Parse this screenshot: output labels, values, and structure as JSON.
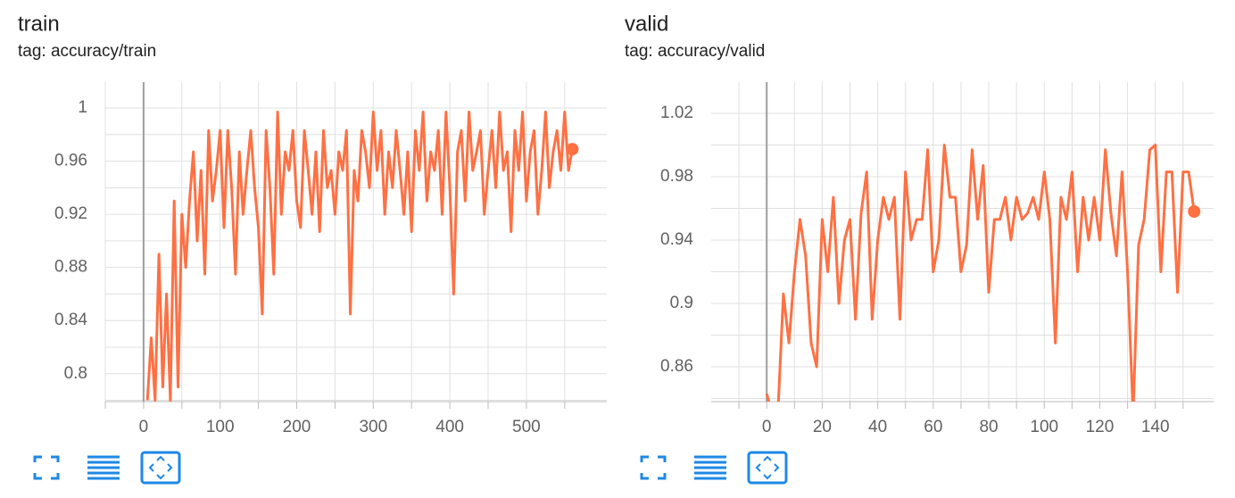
{
  "chart_data": [
    {
      "type": "line",
      "title": "train",
      "subtitle": "tag: accuracy/train",
      "color": "#ff7043",
      "x": [
        5,
        10,
        15,
        20,
        25,
        30,
        35,
        40,
        45,
        50,
        55,
        60,
        65,
        70,
        75,
        80,
        85,
        90,
        95,
        100,
        105,
        110,
        115,
        120,
        125,
        130,
        135,
        140,
        145,
        150,
        155,
        160,
        165,
        170,
        175,
        180,
        185,
        190,
        195,
        200,
        205,
        210,
        215,
        220,
        225,
        230,
        235,
        240,
        245,
        250,
        255,
        260,
        265,
        270,
        275,
        280,
        285,
        290,
        295,
        300,
        305,
        310,
        315,
        320,
        325,
        330,
        335,
        340,
        345,
        350,
        355,
        360,
        365,
        370,
        375,
        380,
        385,
        390,
        395,
        400,
        405,
        410,
        415,
        420,
        425,
        430,
        435,
        440,
        445,
        450,
        455,
        460,
        465,
        470,
        475,
        480,
        485,
        490,
        495,
        500,
        505,
        510,
        515,
        520,
        525,
        530,
        535,
        540,
        545,
        550,
        555,
        560
      ],
      "values": [
        0.78,
        0.827,
        0.78,
        0.89,
        0.79,
        0.86,
        0.78,
        0.93,
        0.79,
        0.92,
        0.88,
        0.93,
        0.967,
        0.9,
        0.953,
        0.875,
        0.983,
        0.93,
        0.953,
        0.983,
        0.91,
        0.983,
        0.94,
        0.875,
        0.967,
        0.92,
        0.953,
        0.983,
        0.94,
        0.91,
        0.845,
        0.983,
        0.94,
        0.875,
        0.997,
        0.92,
        0.967,
        0.953,
        0.983,
        0.93,
        0.91,
        0.983,
        0.953,
        0.92,
        0.967,
        0.907,
        0.983,
        0.94,
        0.953,
        0.92,
        0.967,
        0.953,
        0.983,
        0.845,
        0.953,
        0.93,
        0.983,
        0.967,
        0.94,
        0.997,
        0.953,
        0.983,
        0.92,
        0.967,
        0.94,
        0.983,
        0.953,
        0.92,
        0.967,
        0.907,
        0.983,
        0.953,
        0.997,
        0.93,
        0.967,
        0.953,
        0.983,
        0.92,
        0.997,
        0.94,
        0.86,
        0.967,
        0.983,
        0.93,
        0.997,
        0.953,
        0.967,
        0.983,
        0.92,
        0.953,
        0.983,
        0.94,
        0.997,
        0.953,
        0.967,
        0.907,
        0.983,
        0.953,
        0.997,
        0.93,
        0.967,
        0.983,
        0.92,
        0.953,
        0.997,
        0.94,
        0.967,
        0.983,
        0.953,
        0.997,
        0.953,
        0.969
      ],
      "xlim": [
        -50,
        605
      ],
      "xticks": [
        0,
        100,
        200,
        300,
        400,
        500
      ],
      "ylim": [
        0.779,
        1.0195
      ],
      "yticks": [
        0.8,
        0.84,
        0.88,
        0.92,
        0.96,
        1
      ],
      "grid": true,
      "minor_grid": true,
      "last_point_marker": true
    },
    {
      "type": "line",
      "title": "valid",
      "subtitle": "tag: accuracy/valid",
      "color": "#ff7043",
      "x": [
        0,
        2,
        4,
        6,
        8,
        10,
        12,
        14,
        16,
        18,
        20,
        22,
        24,
        26,
        28,
        30,
        32,
        34,
        36,
        38,
        40,
        42,
        44,
        46,
        48,
        50,
        52,
        54,
        56,
        58,
        60,
        62,
        64,
        66,
        68,
        70,
        72,
        74,
        76,
        78,
        80,
        82,
        84,
        86,
        88,
        90,
        92,
        94,
        96,
        98,
        100,
        102,
        104,
        106,
        108,
        110,
        112,
        114,
        116,
        118,
        120,
        122,
        124,
        126,
        128,
        130,
        132,
        134,
        136,
        138,
        140,
        142,
        144,
        146,
        148,
        150,
        152,
        154
      ],
      "values": [
        0.843,
        0.83,
        0.83,
        0.906,
        0.875,
        0.92,
        0.953,
        0.93,
        0.875,
        0.86,
        0.953,
        0.92,
        0.967,
        0.9,
        0.94,
        0.953,
        0.89,
        0.957,
        0.983,
        0.89,
        0.94,
        0.967,
        0.953,
        0.967,
        0.89,
        0.983,
        0.94,
        0.953,
        0.953,
        0.997,
        0.92,
        0.94,
        1.0,
        0.967,
        0.967,
        0.92,
        0.937,
        0.997,
        0.953,
        0.987,
        0.907,
        0.953,
        0.953,
        0.967,
        0.94,
        0.967,
        0.953,
        0.957,
        0.967,
        0.953,
        0.983,
        0.953,
        0.875,
        0.967,
        0.953,
        0.983,
        0.92,
        0.967,
        0.94,
        0.967,
        0.94,
        0.997,
        0.957,
        0.93,
        0.983,
        0.92,
        0.83,
        0.937,
        0.953,
        0.997,
        1.0,
        0.92,
        0.983,
        0.983,
        0.907,
        0.983,
        0.983,
        0.958
      ],
      "xlim": [
        -20,
        161
      ],
      "xticks": [
        0,
        20,
        40,
        60,
        80,
        100,
        120,
        140
      ],
      "ylim": [
        0.838,
        1.0397
      ],
      "yticks": [
        0.86,
        0.9,
        0.94,
        0.98,
        1.02
      ],
      "grid": true,
      "minor_grid": true,
      "last_point_marker": true
    }
  ]
}
